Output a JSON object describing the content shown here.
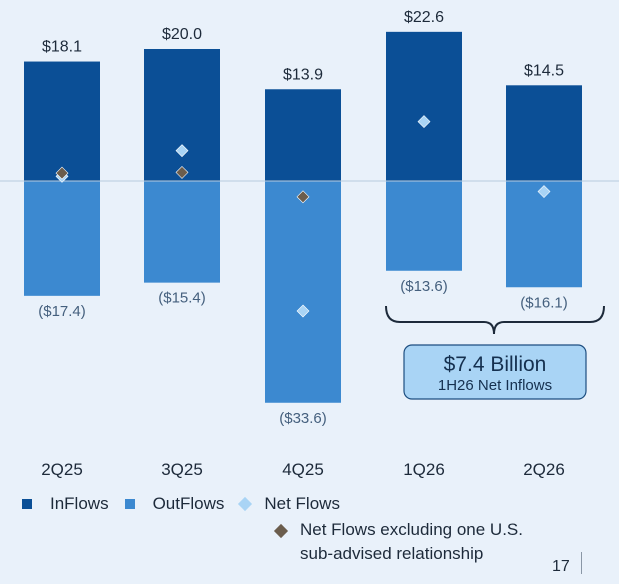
{
  "chart_data": {
    "type": "bar",
    "categories": [
      "2Q25",
      "3Q25",
      "4Q25",
      "1Q26",
      "2Q26"
    ],
    "series": [
      {
        "name": "InFlows",
        "values": [
          18.1,
          20.0,
          13.9,
          22.6,
          14.5
        ],
        "labels": [
          "$18.1",
          "$20.0",
          "$13.9",
          "$22.6",
          "$14.5"
        ],
        "color": "#0b4f96"
      },
      {
        "name": "OutFlows",
        "values": [
          -17.4,
          -15.4,
          -33.6,
          -13.6,
          -16.1
        ],
        "labels": [
          "($17.4)",
          "($15.4)",
          "($33.6)",
          "($13.6)",
          "($16.1)"
        ],
        "color": "#3c89d0"
      },
      {
        "name": "Net Flows",
        "values": [
          0.7,
          4.6,
          -19.7,
          9.0,
          -1.6
        ],
        "marker": "diamond",
        "color": "#a9d4f5"
      },
      {
        "name": "Net Flows excluding one U.S. sub-advised relationship",
        "values": [
          1.2,
          1.3,
          -2.4,
          null,
          null
        ],
        "marker": "diamond",
        "color": "#6b5d4d"
      }
    ],
    "ylim": [
      -36,
      24
    ],
    "grid": false,
    "legend_position": "bottom-left",
    "annotation": {
      "title": "$7.4 Billion",
      "subtitle": "1H26 Net Inflows",
      "spans": [
        "1Q26",
        "2Q26"
      ]
    }
  },
  "legend": {
    "inflows": "InFlows",
    "outflows": "OutFlows",
    "net": "Net Flows",
    "net_ex_line1": "Net Flows excluding one U.S.",
    "net_ex_line2": "sub-advised relationship"
  },
  "page_number": "17"
}
